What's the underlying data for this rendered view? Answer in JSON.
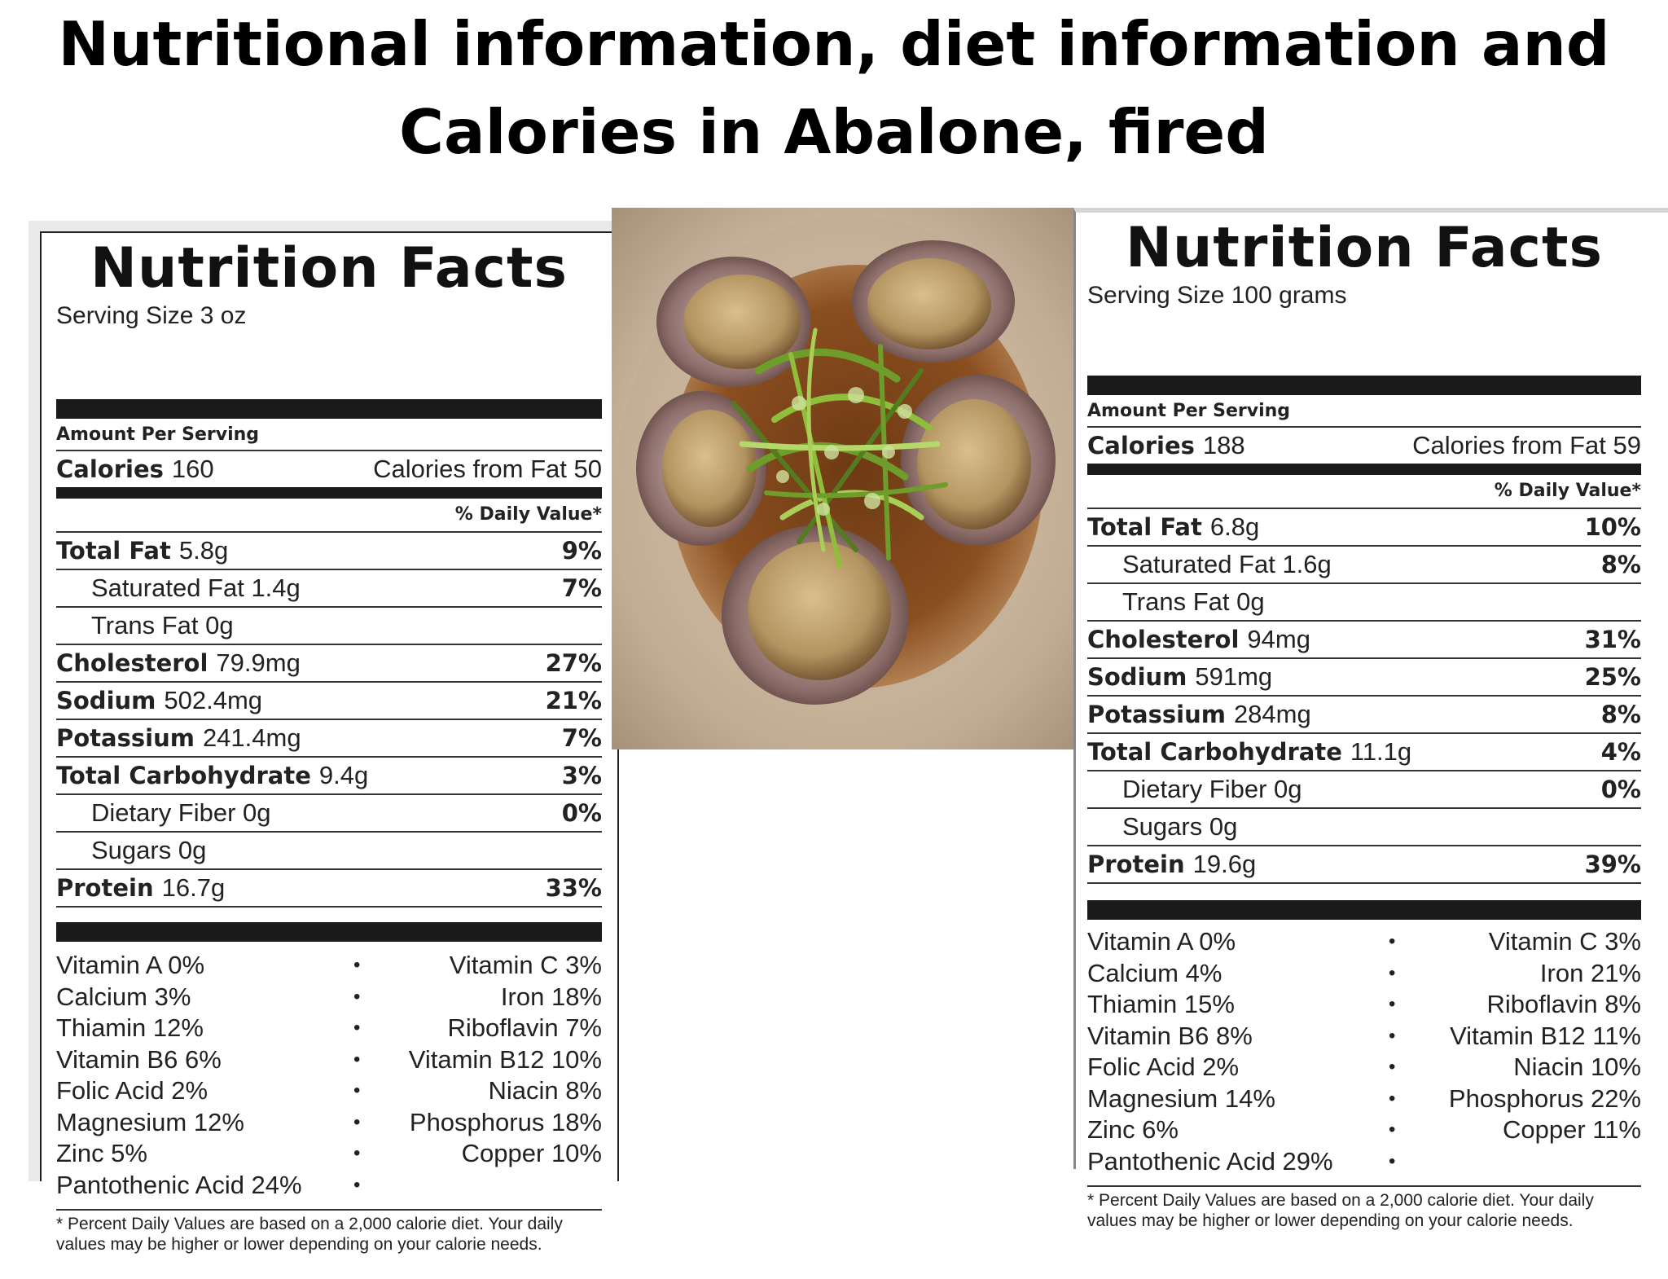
{
  "slide": {
    "title_line1": "Nutritional information, diet information and",
    "title_line2": "Calories in Abalone, fired"
  },
  "left_label": {
    "title": "Nutrition Facts",
    "serving_size": "Serving Size 3 oz",
    "amount_per_serving": "Amount Per Serving",
    "calories_label": "Calories",
    "calories_value": "160",
    "calories_from_fat": "Calories from Fat 50",
    "daily_value_header": "% Daily Value*",
    "nutrients": [
      {
        "name": "Total Fat",
        "amount": "5.8g",
        "pct": "9%"
      },
      {
        "name": "Saturated Fat 1.4g",
        "amount": "",
        "pct": "7%"
      },
      {
        "name": "Trans Fat 0g",
        "amount": "",
        "pct": ""
      },
      {
        "name": "Cholesterol",
        "amount": "79.9mg",
        "pct": "27%"
      },
      {
        "name": "Sodium",
        "amount": "502.4mg",
        "pct": "21%"
      },
      {
        "name": "Potassium",
        "amount": "241.4mg",
        "pct": "7%"
      },
      {
        "name": "Total Carbohydrate",
        "amount": "9.4g",
        "pct": "3%"
      },
      {
        "name": "Dietary Fiber 0g",
        "amount": "",
        "pct": "0%"
      },
      {
        "name": "Sugars 0g",
        "amount": "",
        "pct": ""
      },
      {
        "name": "Protein",
        "amount": "16.7g",
        "pct": "33%"
      }
    ],
    "vitamins": [
      {
        "left": "Vitamin A  0%",
        "right": "Vitamin C  3%"
      },
      {
        "left": "Calcium  3%",
        "right": "Iron  18%"
      },
      {
        "left": "Thiamin  12%",
        "right": "Riboflavin  7%"
      },
      {
        "left": "Vitamin B6  6%",
        "right": "Vitamin B12  10%"
      },
      {
        "left": "Folic Acid  2%",
        "right": "Niacin  8%"
      },
      {
        "left": "Magnesium  12%",
        "right": "Phosphorus  18%"
      },
      {
        "left": "Zinc  5%",
        "right": "Copper  10%"
      },
      {
        "left": "Pantothenic Acid  24%",
        "right": ""
      }
    ],
    "bullet": "•",
    "footnote": "* Percent Daily Values are based on a 2,000 calorie diet. Your daily values may be higher or lower depending on your calorie needs."
  },
  "right_label": {
    "title": "Nutrition Facts",
    "serving_size": "Serving Size 100 grams",
    "amount_per_serving": "Amount Per Serving",
    "calories_label": "Calories",
    "calories_value": "188",
    "calories_from_fat": "Calories from Fat 59",
    "daily_value_header": "% Daily Value*",
    "nutrients": [
      {
        "name": "Total Fat",
        "amount": "6.8g",
        "pct": "10%"
      },
      {
        "name": "Saturated Fat 1.6g",
        "amount": "",
        "pct": "8%"
      },
      {
        "name": "Trans Fat 0g",
        "amount": "",
        "pct": ""
      },
      {
        "name": "Cholesterol",
        "amount": "94mg",
        "pct": "31%"
      },
      {
        "name": "Sodium",
        "amount": "591mg",
        "pct": "25%"
      },
      {
        "name": "Potassium",
        "amount": "284mg",
        "pct": "8%"
      },
      {
        "name": "Total Carbohydrate",
        "amount": "11.1g",
        "pct": "4%"
      },
      {
        "name": "Dietary Fiber 0g",
        "amount": "",
        "pct": "0%"
      },
      {
        "name": "Sugars 0g",
        "amount": "",
        "pct": ""
      },
      {
        "name": "Protein",
        "amount": "19.6g",
        "pct": "39%"
      }
    ],
    "vitamins": [
      {
        "left": "Vitamin A  0%",
        "right": "Vitamin C  3%"
      },
      {
        "left": "Calcium  4%",
        "right": "Iron  21%"
      },
      {
        "left": "Thiamin  15%",
        "right": "Riboflavin  8%"
      },
      {
        "left": "Vitamin B6  8%",
        "right": "Vitamin B12  11%"
      },
      {
        "left": "Folic Acid  2%",
        "right": "Niacin  10%"
      },
      {
        "left": "Magnesium  14%",
        "right": "Phosphorus  22%"
      },
      {
        "left": "Zinc  6%",
        "right": "Copper  11%"
      },
      {
        "left": "Pantothenic Acid  29%",
        "right": ""
      }
    ],
    "bullet": "•",
    "footnote": "* Percent Daily Values are based on a 2,000 calorie diet. Your daily values may be higher or lower depending on your calorie needs."
  }
}
